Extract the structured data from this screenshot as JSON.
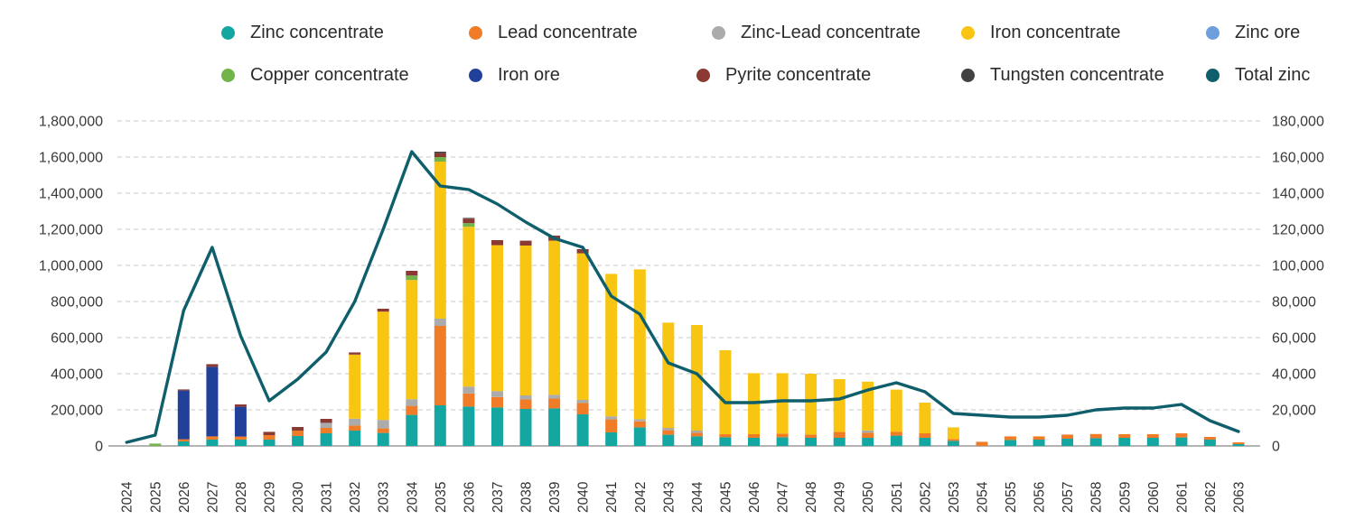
{
  "legend": {
    "items": [
      {
        "label": "Zinc concentrate",
        "color": "#14a7a1"
      },
      {
        "label": "Lead concentrate",
        "color": "#f07c27"
      },
      {
        "label": "Zinc-Lead concentrate",
        "color": "#ababab"
      },
      {
        "label": "Iron concentrate",
        "color": "#f9c513"
      },
      {
        "label": "Zinc ore",
        "color": "#6ca0dc"
      },
      {
        "label": "Copper concentrate",
        "color": "#71b54a"
      },
      {
        "label": "Iron ore",
        "color": "#21409a"
      },
      {
        "label": "Pyrite concentrate",
        "color": "#8a3a33"
      },
      {
        "label": "Tungsten concentrate",
        "color": "#424242"
      },
      {
        "label": "Total zinc",
        "color": "#0e5f6b"
      }
    ]
  },
  "chart_data": {
    "type": "bar+line",
    "categories": [
      "2024",
      "2025",
      "2026",
      "2027",
      "2028",
      "2029",
      "2030",
      "2031",
      "2032",
      "2033",
      "2034",
      "2035",
      "2036",
      "2037",
      "2038",
      "2039",
      "2040",
      "2041",
      "2042",
      "2043",
      "2044",
      "2045",
      "2046",
      "2047",
      "2048",
      "2049",
      "2050",
      "2051",
      "2052",
      "2053",
      "2054",
      "2055",
      "2056",
      "2057",
      "2058",
      "2059",
      "2060",
      "2061",
      "2062",
      "2063"
    ],
    "left_axis": {
      "title": "",
      "max": 1800000,
      "step": 200000,
      "ticks": [
        "0",
        "200,000",
        "400,000",
        "600,000",
        "800,000",
        "1,000,000",
        "1,200,000",
        "1,400,000",
        "1,600,000",
        "1,800,000"
      ]
    },
    "right_axis": {
      "title": "",
      "max": 180000,
      "step": 20000,
      "ticks": [
        "0",
        "20,000",
        "40,000",
        "60,000",
        "80,000",
        "100,000",
        "120,000",
        "140,000",
        "160,000",
        "180,000"
      ]
    },
    "grid": "dashed-horizontal",
    "legend_position": "top",
    "series": [
      {
        "name": "Zinc concentrate",
        "type": "bar",
        "axis": "left",
        "color": "#14a7a1",
        "values": [
          0,
          0,
          25000,
          35000,
          35000,
          35000,
          55000,
          70000,
          85000,
          72000,
          172000,
          225000,
          218000,
          213000,
          205000,
          208000,
          175000,
          75000,
          103000,
          62000,
          53000,
          48000,
          45000,
          48000,
          45000,
          45000,
          45000,
          57000,
          45000,
          28000,
          0,
          33000,
          35000,
          40000,
          43000,
          45000,
          45000,
          47000,
          35000,
          10000
        ]
      },
      {
        "name": "Lead concentrate",
        "type": "bar",
        "axis": "left",
        "color": "#f07c27",
        "values": [
          0,
          0,
          12000,
          18000,
          17000,
          25000,
          30000,
          30000,
          28000,
          25000,
          50000,
          440000,
          73000,
          58000,
          53000,
          55000,
          63000,
          72000,
          33000,
          25000,
          20000,
          17000,
          20000,
          20000,
          18000,
          33000,
          28000,
          22000,
          25000,
          10000,
          23000,
          20000,
          18000,
          23000,
          23000,
          20000,
          20000,
          23000,
          15000,
          10000
        ]
      },
      {
        "name": "Zinc-Lead concentrate",
        "type": "bar",
        "axis": "left",
        "color": "#ababab",
        "values": [
          0,
          0,
          0,
          0,
          0,
          0,
          0,
          28000,
          38000,
          47000,
          37000,
          40000,
          38000,
          33000,
          22000,
          20000,
          17000,
          17000,
          12000,
          13000,
          12000,
          0,
          0,
          0,
          0,
          0,
          13000,
          0,
          0,
          0,
          0,
          0,
          0,
          0,
          0,
          0,
          0,
          0,
          0,
          0
        ]
      },
      {
        "name": "Iron concentrate",
        "type": "bar",
        "axis": "left",
        "color": "#f9c513",
        "values": [
          0,
          0,
          0,
          0,
          0,
          0,
          0,
          0,
          355000,
          600000,
          660000,
          870000,
          885000,
          808000,
          830000,
          854000,
          812000,
          789000,
          830000,
          583000,
          585000,
          465000,
          338000,
          335000,
          337000,
          292000,
          270000,
          233000,
          170000,
          65000,
          0,
          0,
          0,
          0,
          0,
          0,
          0,
          0,
          0,
          0
        ]
      },
      {
        "name": "Zinc ore",
        "type": "bar",
        "axis": "left",
        "color": "#6ca0dc",
        "values": [
          0,
          0,
          0,
          0,
          0,
          0,
          0,
          0,
          0,
          0,
          0,
          0,
          0,
          0,
          0,
          0,
          0,
          0,
          0,
          0,
          0,
          0,
          0,
          0,
          0,
          0,
          0,
          0,
          0,
          0,
          0,
          0,
          0,
          0,
          0,
          0,
          0,
          0,
          0,
          0
        ]
      },
      {
        "name": "Copper concentrate",
        "type": "bar",
        "axis": "left",
        "color": "#71b54a",
        "values": [
          0,
          13000,
          0,
          0,
          0,
          0,
          0,
          0,
          0,
          0,
          25000,
          25000,
          20000,
          0,
          0,
          0,
          0,
          0,
          0,
          0,
          0,
          0,
          0,
          0,
          0,
          0,
          0,
          0,
          0,
          0,
          0,
          0,
          0,
          0,
          0,
          0,
          0,
          0,
          0,
          0
        ]
      },
      {
        "name": "Iron ore",
        "type": "bar",
        "axis": "left",
        "color": "#21409a",
        "values": [
          0,
          0,
          270000,
          385000,
          165000,
          0,
          0,
          0,
          0,
          0,
          0,
          0,
          0,
          0,
          0,
          0,
          0,
          0,
          0,
          0,
          0,
          0,
          0,
          0,
          0,
          0,
          0,
          0,
          0,
          0,
          0,
          0,
          0,
          0,
          0,
          0,
          0,
          0,
          0,
          0
        ]
      },
      {
        "name": "Pyrite concentrate",
        "type": "bar",
        "axis": "left",
        "color": "#8a3a33",
        "values": [
          0,
          0,
          6000,
          15000,
          13000,
          18000,
          20000,
          22000,
          12000,
          16000,
          26000,
          22000,
          25000,
          28000,
          27000,
          28000,
          23000,
          0,
          0,
          0,
          0,
          0,
          0,
          0,
          0,
          0,
          0,
          0,
          0,
          0,
          0,
          0,
          0,
          0,
          0,
          0,
          0,
          0,
          0,
          0
        ]
      },
      {
        "name": "Tungsten concentrate",
        "type": "bar",
        "axis": "left",
        "color": "#424242",
        "values": [
          0,
          0,
          0,
          0,
          0,
          0,
          0,
          0,
          0,
          0,
          0,
          8000,
          4000,
          0,
          0,
          0,
          0,
          0,
          0,
          0,
          0,
          0,
          0,
          0,
          0,
          0,
          0,
          0,
          0,
          0,
          0,
          0,
          0,
          0,
          0,
          0,
          0,
          0,
          0,
          0
        ]
      },
      {
        "name": "Total zinc",
        "type": "line",
        "axis": "right",
        "color": "#0e5f6b",
        "values": [
          2000,
          6000,
          75000,
          110000,
          61000,
          25000,
          37000,
          52000,
          80000,
          120000,
          163000,
          144000,
          142000,
          134000,
          124000,
          115000,
          110000,
          83000,
          73000,
          46000,
          40000,
          24000,
          24000,
          25000,
          25000,
          26000,
          31000,
          35000,
          30000,
          18000,
          17000,
          16000,
          16000,
          17000,
          20000,
          21000,
          21000,
          23000,
          14000,
          8000
        ]
      }
    ]
  }
}
